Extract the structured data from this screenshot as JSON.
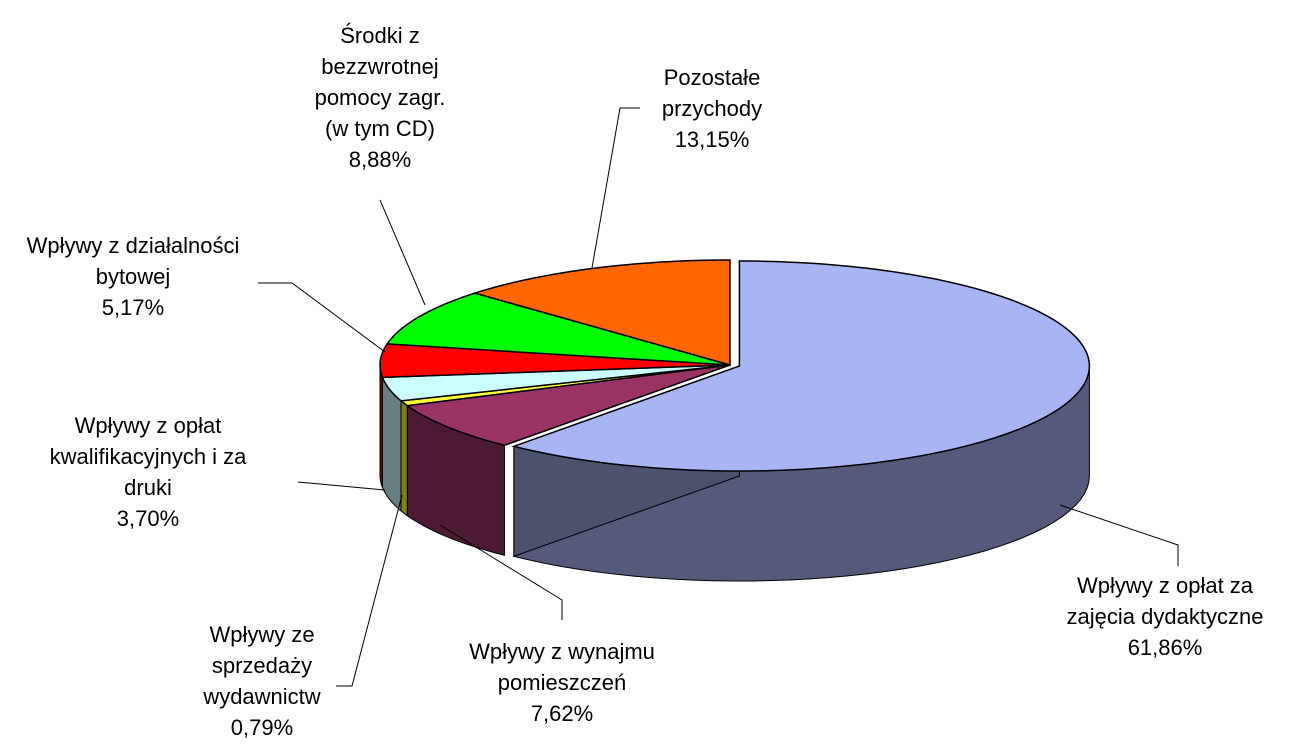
{
  "chart_data": {
    "type": "pie",
    "categories": [
      "Wpływy z opłat za zajęcia dydaktyczne",
      "Wpływy z wynajmu pomieszczeń",
      "Wpływy ze sprzedaży wydawnictw",
      "Wpływy z opłat kwalifikacyjnych i za druki",
      "Wpływy z działalności bytowej",
      "Środki z bezzwrotnej pomocy zagr. (w tym CD)",
      "Pozostałe przychody"
    ],
    "values": [
      61.86,
      7.62,
      0.79,
      3.7,
      5.17,
      8.88,
      13.15
    ],
    "value_labels": [
      "61,86%",
      "7,62%",
      "0,79%",
      "3,70%",
      "5,17%",
      "8,88%",
      "13,15%"
    ],
    "colors": [
      "#a9b4f5",
      "#993366",
      "#ffff33",
      "#ccffff",
      "#ff0000",
      "#00ff00",
      "#ff6600"
    ]
  }
}
